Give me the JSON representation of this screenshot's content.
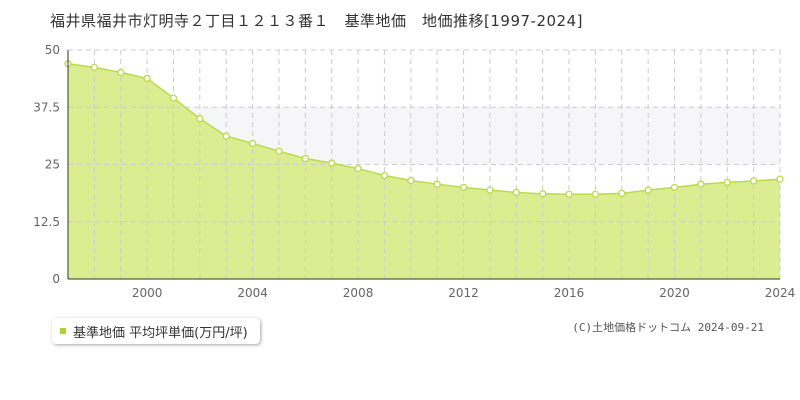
{
  "title": "福井県福井市灯明寺２丁目１２１３番１　基準地価　地価推移[1997-2024]",
  "copyright": "(C)土地価格ドットコム 2024-09-21",
  "colors": {
    "fill": "#dcec91",
    "line": "#b9da4a",
    "band": "#f6f6f8",
    "grid": "#cccccc",
    "legend_marker": "#a8d531"
  },
  "chart_data": {
    "type": "area",
    "title": "福井県福井市灯明寺２丁目１２１３番１　基準地価　地価推移[1997-2024]",
    "xlabel": "",
    "ylabel": "",
    "xlim": [
      1997,
      2024
    ],
    "ylim": [
      0,
      50
    ],
    "grid": true,
    "legend_position": "bottom-left",
    "x_ticks": [
      2000,
      2004,
      2008,
      2012,
      2016,
      2020,
      2024
    ],
    "x_tick_labels": [
      "2000",
      "2004",
      "2008",
      "2012",
      "2016",
      "2020",
      "2024"
    ],
    "y_ticks": [
      0,
      12.5,
      25,
      37.5,
      50
    ],
    "y_tick_labels": [
      "0",
      "12.5",
      "25",
      "37.5",
      "50"
    ],
    "band": [
      25,
      37.5
    ],
    "series": [
      {
        "name": "基準地価 平均坪単価(万円/坪)",
        "x": [
          1997,
          1998,
          1999,
          2000,
          2001,
          2002,
          2003,
          2004,
          2005,
          2006,
          2007,
          2008,
          2009,
          2010,
          2011,
          2012,
          2013,
          2014,
          2015,
          2016,
          2017,
          2018,
          2019,
          2020,
          2021,
          2022,
          2023,
          2024
        ],
        "values": [
          47.0,
          46.2,
          45.1,
          43.8,
          39.5,
          35.0,
          31.2,
          29.6,
          27.9,
          26.3,
          25.3,
          24.1,
          22.6,
          21.5,
          20.7,
          20.0,
          19.4,
          18.9,
          18.6,
          18.5,
          18.5,
          18.7,
          19.4,
          20.0,
          20.7,
          21.1,
          21.4,
          21.8
        ]
      }
    ]
  }
}
